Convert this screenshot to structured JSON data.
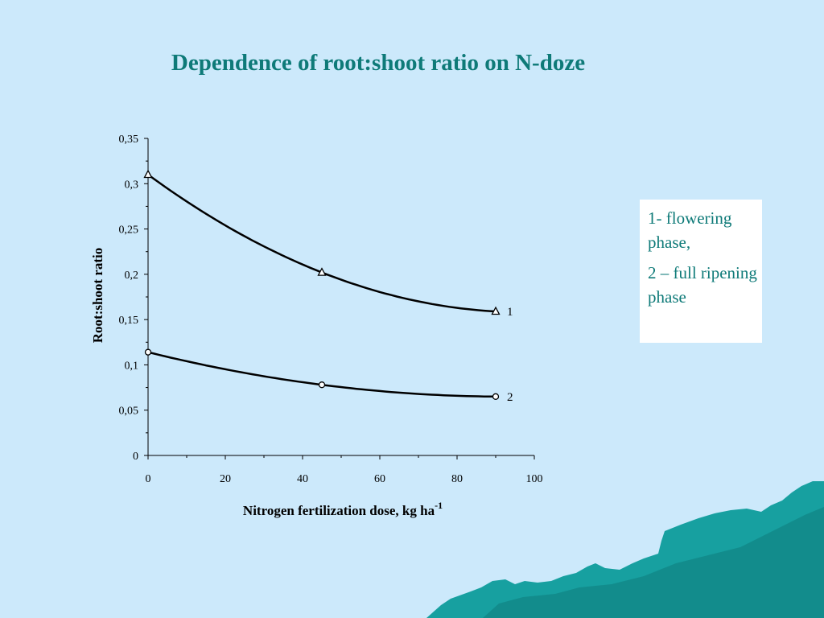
{
  "title": "Dependence of root:shoot ratio on N-doze",
  "legend_notes": [
    "1- flowering phase,",
    "2 – full ripening phase"
  ],
  "colors": {
    "background": "#cce9fb",
    "title": "#0e7a78",
    "terrain": "#17a0a0"
  },
  "chart_data": {
    "type": "line",
    "xlabel": "Nitrogen fertilization dose, kg ha",
    "xlabel_superscript": "-1",
    "ylabel": "Root:shoot ratio",
    "xlim": [
      0,
      100
    ],
    "ylim": [
      0,
      0.35
    ],
    "x_ticks": [
      0,
      20,
      40,
      60,
      80,
      100
    ],
    "x_tick_labels": [
      "0",
      "20",
      "40",
      "60",
      "80",
      "100"
    ],
    "y_ticks": [
      0,
      0.05,
      0.1,
      0.15,
      0.2,
      0.25,
      0.3,
      0.35
    ],
    "y_tick_labels": [
      "0",
      "0,05",
      "0,1",
      "0,15",
      "0,2",
      "0,25",
      "0,3",
      "0,35"
    ],
    "grid": false,
    "series": [
      {
        "name": "1",
        "marker": "triangle",
        "x": [
          0,
          45,
          90
        ],
        "y": [
          0.31,
          0.202,
          0.159
        ]
      },
      {
        "name": "2",
        "marker": "circle",
        "x": [
          0,
          45,
          90
        ],
        "y": [
          0.114,
          0.078,
          0.065
        ]
      }
    ]
  }
}
